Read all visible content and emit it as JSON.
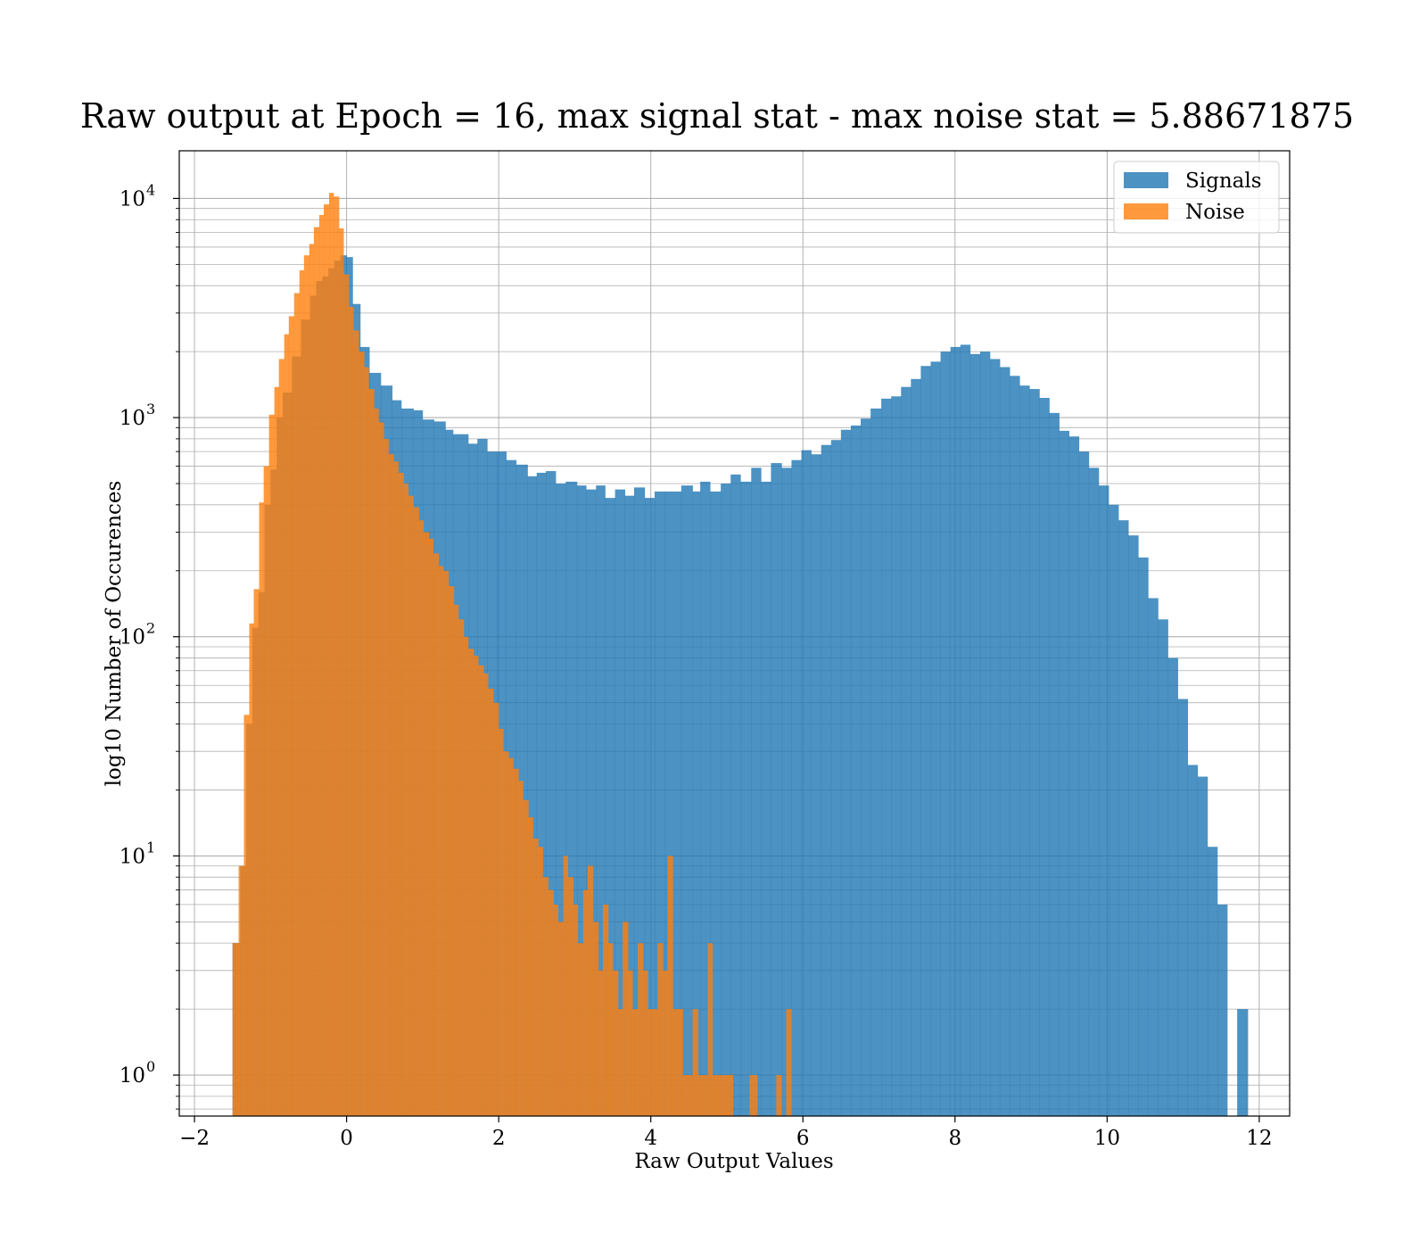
{
  "chart_data": {
    "type": "bar",
    "title": "Raw output at Epoch = 16, max signal stat - max noise stat = 5.88671875",
    "xlabel": "Raw Output Values",
    "ylabel": "log10 Number of Occurences",
    "xlim": [
      -2.2,
      12.4
    ],
    "ylim": [
      0.65,
      16500
    ],
    "yscale": "log",
    "grid": true,
    "legend_position": "top-right",
    "x_ticks": [
      -2,
      0,
      2,
      4,
      6,
      8,
      10,
      12
    ],
    "x_tick_labels": [
      "−2",
      "0",
      "2",
      "4",
      "6",
      "8",
      "10",
      "12"
    ],
    "y_ticks": [
      1,
      10,
      100,
      1000,
      10000
    ],
    "y_tick_bases": [
      "10",
      "10",
      "10",
      "10",
      "10"
    ],
    "y_tick_exponents": [
      "0",
      "1",
      "2",
      "3",
      "4"
    ],
    "series": [
      {
        "name": "Signals",
        "color": "#1f77b4",
        "opacity": 0.8,
        "bins": [
          [
            -1.5,
            -1.4,
            4
          ],
          [
            -1.4,
            -1.32,
            9
          ],
          [
            -1.32,
            -1.24,
            40
          ],
          [
            -1.24,
            -1.16,
            110
          ],
          [
            -1.16,
            -1.08,
            160
          ],
          [
            -1.08,
            -1.0,
            400
          ],
          [
            -1.0,
            -0.92,
            580
          ],
          [
            -0.92,
            -0.84,
            1000
          ],
          [
            -0.84,
            -0.72,
            1300
          ],
          [
            -0.72,
            -0.6,
            1900
          ],
          [
            -0.6,
            -0.48,
            2800
          ],
          [
            -0.48,
            -0.4,
            3600
          ],
          [
            -0.4,
            -0.32,
            4200
          ],
          [
            -0.32,
            -0.24,
            4400
          ],
          [
            -0.24,
            -0.16,
            4800
          ],
          [
            -0.16,
            -0.08,
            5200
          ],
          [
            -0.08,
            0.0,
            5500
          ],
          [
            0.0,
            0.08,
            5400
          ],
          [
            0.08,
            0.18,
            3300
          ],
          [
            0.18,
            0.3,
            2100
          ],
          [
            0.3,
            0.45,
            1600
          ],
          [
            0.45,
            0.6,
            1400
          ],
          [
            0.6,
            0.72,
            1200
          ],
          [
            0.72,
            0.88,
            1100
          ],
          [
            0.88,
            1.0,
            1080
          ],
          [
            1.0,
            1.15,
            980
          ],
          [
            1.15,
            1.3,
            960
          ],
          [
            1.3,
            1.4,
            880
          ],
          [
            1.4,
            1.6,
            840
          ],
          [
            1.6,
            1.72,
            760
          ],
          [
            1.72,
            1.85,
            800
          ],
          [
            1.85,
            1.98,
            700
          ],
          [
            1.98,
            2.1,
            700
          ],
          [
            2.1,
            2.23,
            640
          ],
          [
            2.23,
            2.38,
            610
          ],
          [
            2.38,
            2.5,
            540
          ],
          [
            2.5,
            2.62,
            560
          ],
          [
            2.62,
            2.75,
            570
          ],
          [
            2.75,
            2.88,
            500
          ],
          [
            2.88,
            3.03,
            510
          ],
          [
            3.03,
            3.15,
            490
          ],
          [
            3.15,
            3.28,
            470
          ],
          [
            3.28,
            3.4,
            490
          ],
          [
            3.4,
            3.53,
            430
          ],
          [
            3.53,
            3.66,
            470
          ],
          [
            3.66,
            3.78,
            440
          ],
          [
            3.78,
            3.92,
            480
          ],
          [
            3.92,
            4.05,
            430
          ],
          [
            4.05,
            4.18,
            460
          ],
          [
            4.18,
            4.4,
            460
          ],
          [
            4.4,
            4.55,
            490
          ],
          [
            4.55,
            4.65,
            460
          ],
          [
            4.65,
            4.78,
            510
          ],
          [
            4.78,
            4.92,
            460
          ],
          [
            4.92,
            5.05,
            500
          ],
          [
            5.05,
            5.18,
            550
          ],
          [
            5.18,
            5.32,
            510
          ],
          [
            5.32,
            5.45,
            590
          ],
          [
            5.45,
            5.58,
            510
          ],
          [
            5.58,
            5.72,
            620
          ],
          [
            5.72,
            5.85,
            590
          ],
          [
            5.85,
            5.98,
            640
          ],
          [
            5.98,
            6.11,
            710
          ],
          [
            6.11,
            6.24,
            680
          ],
          [
            6.24,
            6.37,
            750
          ],
          [
            6.37,
            6.5,
            790
          ],
          [
            6.5,
            6.63,
            880
          ],
          [
            6.63,
            6.76,
            920
          ],
          [
            6.76,
            6.89,
            990
          ],
          [
            6.89,
            7.03,
            1100
          ],
          [
            7.03,
            7.16,
            1220
          ],
          [
            7.16,
            7.29,
            1250
          ],
          [
            7.29,
            7.42,
            1380
          ],
          [
            7.42,
            7.55,
            1500
          ],
          [
            7.55,
            7.68,
            1720
          ],
          [
            7.68,
            7.81,
            1800
          ],
          [
            7.81,
            7.94,
            2000
          ],
          [
            7.94,
            8.07,
            2100
          ],
          [
            8.07,
            8.2,
            2150
          ],
          [
            8.2,
            8.33,
            1950
          ],
          [
            8.33,
            8.46,
            2000
          ],
          [
            8.46,
            8.59,
            1850
          ],
          [
            8.59,
            8.72,
            1700
          ],
          [
            8.72,
            8.85,
            1550
          ],
          [
            8.85,
            8.98,
            1400
          ],
          [
            8.98,
            9.11,
            1350
          ],
          [
            9.11,
            9.24,
            1230
          ],
          [
            9.24,
            9.37,
            1050
          ],
          [
            9.37,
            9.5,
            870
          ],
          [
            9.5,
            9.63,
            820
          ],
          [
            9.63,
            9.76,
            700
          ],
          [
            9.76,
            9.89,
            590
          ],
          [
            9.89,
            10.02,
            490
          ],
          [
            10.02,
            10.15,
            400
          ],
          [
            10.15,
            10.28,
            340
          ],
          [
            10.28,
            10.41,
            290
          ],
          [
            10.41,
            10.54,
            230
          ],
          [
            10.54,
            10.67,
            150
          ],
          [
            10.67,
            10.8,
            120
          ],
          [
            10.8,
            10.93,
            80
          ],
          [
            10.93,
            11.06,
            52
          ],
          [
            11.06,
            11.19,
            26
          ],
          [
            11.19,
            11.32,
            23
          ],
          [
            11.32,
            11.45,
            11
          ],
          [
            11.45,
            11.58,
            6
          ],
          [
            11.58,
            11.71,
            0
          ],
          [
            11.71,
            11.85,
            2
          ]
        ]
      },
      {
        "name": "Noise",
        "color": "#ff7f0e",
        "opacity": 0.8,
        "bins": [
          [
            -1.5,
            -1.42,
            4
          ],
          [
            -1.42,
            -1.35,
            9
          ],
          [
            -1.35,
            -1.28,
            44
          ],
          [
            -1.28,
            -1.22,
            115
          ],
          [
            -1.22,
            -1.15,
            165
          ],
          [
            -1.15,
            -1.09,
            410
          ],
          [
            -1.09,
            -1.02,
            600
          ],
          [
            -1.02,
            -0.95,
            1030
          ],
          [
            -0.95,
            -0.89,
            1380
          ],
          [
            -0.89,
            -0.82,
            1850
          ],
          [
            -0.82,
            -0.76,
            2400
          ],
          [
            -0.76,
            -0.69,
            2900
          ],
          [
            -0.69,
            -0.62,
            3700
          ],
          [
            -0.62,
            -0.56,
            4700
          ],
          [
            -0.56,
            -0.49,
            5500
          ],
          [
            -0.49,
            -0.43,
            6200
          ],
          [
            -0.43,
            -0.36,
            7400
          ],
          [
            -0.36,
            -0.3,
            8400
          ],
          [
            -0.3,
            -0.23,
            9400
          ],
          [
            -0.23,
            -0.17,
            10600
          ],
          [
            -0.17,
            -0.1,
            10200
          ],
          [
            -0.1,
            -0.04,
            7300
          ],
          [
            -0.04,
            0.03,
            4500
          ],
          [
            0.03,
            0.09,
            3200
          ],
          [
            0.09,
            0.16,
            2500
          ],
          [
            0.16,
            0.23,
            2000
          ],
          [
            0.23,
            0.29,
            1700
          ],
          [
            0.29,
            0.36,
            1350
          ],
          [
            0.36,
            0.42,
            1100
          ],
          [
            0.42,
            0.49,
            950
          ],
          [
            0.49,
            0.55,
            800
          ],
          [
            0.55,
            0.62,
            680
          ],
          [
            0.62,
            0.68,
            630
          ],
          [
            0.68,
            0.75,
            560
          ],
          [
            0.75,
            0.81,
            500
          ],
          [
            0.81,
            0.88,
            440
          ],
          [
            0.88,
            0.95,
            390
          ],
          [
            0.95,
            1.01,
            340
          ],
          [
            1.01,
            1.08,
            300
          ],
          [
            1.08,
            1.14,
            280
          ],
          [
            1.14,
            1.21,
            240
          ],
          [
            1.21,
            1.27,
            210
          ],
          [
            1.27,
            1.34,
            200
          ],
          [
            1.34,
            1.41,
            170
          ],
          [
            1.41,
            1.47,
            140
          ],
          [
            1.47,
            1.54,
            120
          ],
          [
            1.54,
            1.6,
            100
          ],
          [
            1.6,
            1.67,
            88
          ],
          [
            1.67,
            1.73,
            82
          ],
          [
            1.73,
            1.8,
            74
          ],
          [
            1.8,
            1.86,
            68
          ],
          [
            1.86,
            1.93,
            58
          ],
          [
            1.93,
            2.0,
            50
          ],
          [
            2.0,
            2.06,
            38
          ],
          [
            2.06,
            2.13,
            30
          ],
          [
            2.13,
            2.19,
            28
          ],
          [
            2.19,
            2.26,
            25
          ],
          [
            2.26,
            2.32,
            22
          ],
          [
            2.32,
            2.39,
            18
          ],
          [
            2.39,
            2.45,
            15
          ],
          [
            2.45,
            2.52,
            12
          ],
          [
            2.52,
            2.58,
            11
          ],
          [
            2.58,
            2.65,
            8
          ],
          [
            2.65,
            2.72,
            7
          ],
          [
            2.72,
            2.78,
            6
          ],
          [
            2.78,
            2.85,
            5
          ],
          [
            2.85,
            2.91,
            10
          ],
          [
            2.91,
            2.98,
            8
          ],
          [
            2.98,
            3.04,
            6
          ],
          [
            3.04,
            3.11,
            4
          ],
          [
            3.11,
            3.17,
            7
          ],
          [
            3.17,
            3.24,
            9
          ],
          [
            3.24,
            3.31,
            5
          ],
          [
            3.31,
            3.37,
            3
          ],
          [
            3.37,
            3.44,
            6
          ],
          [
            3.44,
            3.5,
            4
          ],
          [
            3.5,
            3.57,
            3
          ],
          [
            3.57,
            3.63,
            2
          ],
          [
            3.63,
            3.7,
            5
          ],
          [
            3.7,
            3.76,
            3
          ],
          [
            3.76,
            3.83,
            2
          ],
          [
            3.83,
            3.9,
            4
          ],
          [
            3.9,
            3.96,
            3
          ],
          [
            3.96,
            4.03,
            2
          ],
          [
            4.03,
            4.09,
            2
          ],
          [
            4.09,
            4.16,
            4
          ],
          [
            4.16,
            4.22,
            3
          ],
          [
            4.22,
            4.29,
            10
          ],
          [
            4.29,
            4.36,
            2
          ],
          [
            4.36,
            4.42,
            2
          ],
          [
            4.42,
            4.49,
            1
          ],
          [
            4.49,
            4.55,
            1
          ],
          [
            4.55,
            4.62,
            2
          ],
          [
            4.62,
            4.68,
            1
          ],
          [
            4.68,
            4.75,
            1
          ],
          [
            4.75,
            4.81,
            4
          ],
          [
            4.81,
            4.88,
            1
          ],
          [
            4.88,
            4.95,
            1
          ],
          [
            4.95,
            5.01,
            1
          ],
          [
            5.01,
            5.08,
            1
          ],
          [
            5.08,
            5.3,
            0
          ],
          [
            5.3,
            5.4,
            1
          ],
          [
            5.4,
            5.65,
            0
          ],
          [
            5.65,
            5.72,
            1
          ],
          [
            5.72,
            5.78,
            0
          ],
          [
            5.78,
            5.85,
            2
          ]
        ]
      }
    ]
  }
}
